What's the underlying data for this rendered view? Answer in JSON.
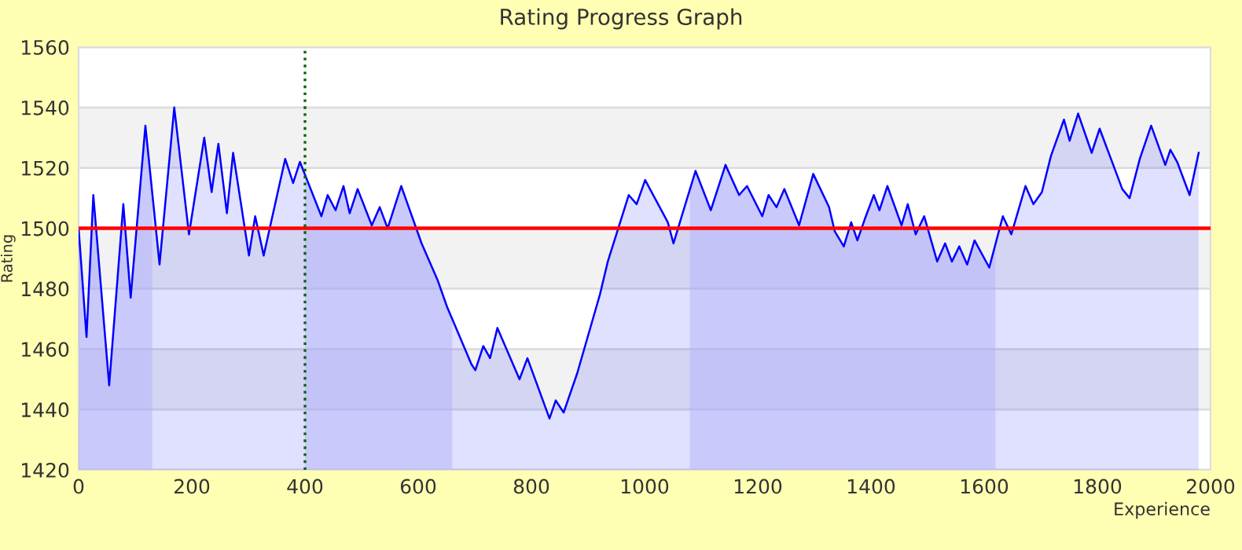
{
  "chart_data": {
    "type": "area",
    "title": "Rating Progress Graph",
    "xlabel": "Experience",
    "ylabel": "Rating",
    "series": [
      {
        "color": "#0000ff",
        "x": [
          0,
          14,
          26,
          54,
          79,
          92,
          118,
          143,
          169,
          195,
          222,
          235,
          247,
          262,
          273,
          301,
          312,
          327,
          365,
          379,
          391,
          429,
          440,
          454,
          468,
          479,
          493,
          518,
          532,
          546,
          570,
          606,
          634,
          651,
          694,
          701,
          715,
          727,
          740,
          779,
          793,
          832,
          843,
          857,
          881,
          921,
          935,
          972,
          986,
          1001,
          1041,
          1051,
          1090,
          1117,
          1143,
          1167,
          1181,
          1208,
          1219,
          1233,
          1247,
          1273,
          1298,
          1326,
          1336,
          1352,
          1365,
          1376,
          1389,
          1405,
          1415,
          1429,
          1454,
          1465,
          1479,
          1494,
          1517,
          1531,
          1543,
          1556,
          1570,
          1583,
          1609,
          1633,
          1648,
          1673,
          1687,
          1702,
          1718,
          1741,
          1751,
          1766,
          1790,
          1804,
          1824,
          1844,
          1857,
          1875,
          1895,
          1920,
          1929,
          1941,
          1963,
          1979
        ],
        "values": [
          1500,
          1464,
          1511,
          1448,
          1508,
          1477,
          1534,
          1488,
          1540,
          1498,
          1530,
          1512,
          1528,
          1505,
          1525,
          1491,
          1504,
          1491,
          1523,
          1515,
          1522,
          1504,
          1511,
          1506,
          1514,
          1505,
          1513,
          1501,
          1507,
          1500,
          1514,
          1495,
          1483,
          1474,
          1455,
          1453,
          1461,
          1457,
          1467,
          1450,
          1457,
          1437,
          1443,
          1439,
          1452,
          1478,
          1489,
          1511,
          1508,
          1516,
          1502,
          1495,
          1519,
          1506,
          1521,
          1511,
          1514,
          1504,
          1511,
          1507,
          1513,
          1501,
          1518,
          1507,
          1499,
          1494,
          1502,
          1496,
          1503,
          1511,
          1506,
          1514,
          1501,
          1508,
          1498,
          1504,
          1489,
          1495,
          1489,
          1494,
          1488,
          1496,
          1487,
          1504,
          1498,
          1514,
          1508,
          1512,
          1524,
          1536,
          1529,
          1538,
          1525,
          1533,
          1523,
          1513,
          1510,
          1523,
          1534,
          1521,
          1526,
          1522,
          1511,
          1525
        ]
      }
    ],
    "xlim": [
      0,
      2000
    ],
    "ylim": [
      1420,
      1560
    ],
    "xticks": [
      0,
      200,
      400,
      600,
      800,
      1000,
      1200,
      1400,
      1600,
      1800,
      2000
    ],
    "yticks": [
      1420,
      1440,
      1460,
      1480,
      1500,
      1520,
      1540,
      1560
    ],
    "grid": "y",
    "ref_lines": [
      {
        "axis": "y",
        "value": 1500,
        "color": "#ff0000",
        "line_style": "solid"
      },
      {
        "axis": "x",
        "value": 400,
        "color": "#006600",
        "line_style": "dotted"
      }
    ],
    "bands": [
      {
        "axis": "y",
        "from": 1520,
        "to": 1540,
        "color": "#f2f2f2"
      },
      {
        "axis": "y",
        "from": 1480,
        "to": 1500,
        "color": "#f2f2f2"
      },
      {
        "axis": "y",
        "from": 1440,
        "to": 1460,
        "color": "#f2f2f2"
      },
      {
        "axis": "x",
        "from": 0,
        "to": 130,
        "color": "#ccccfa"
      },
      {
        "axis": "x",
        "from": 400,
        "to": 660,
        "color": "#ccccfa"
      },
      {
        "axis": "x",
        "from": 1080,
        "to": 1620,
        "color": "#ccccfa"
      }
    ]
  }
}
